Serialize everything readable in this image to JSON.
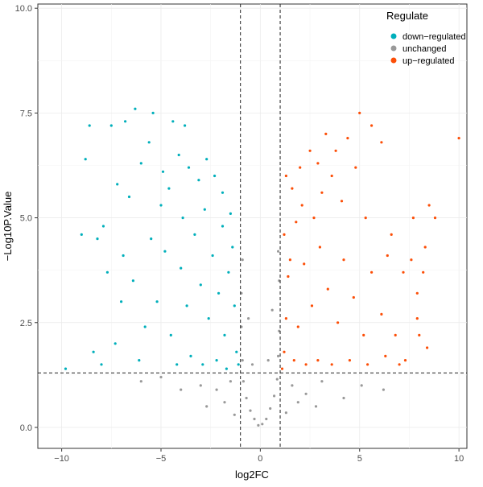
{
  "chart_data": {
    "type": "scatter",
    "xlabel": "log2FC",
    "ylabel": "−Log10P.Value",
    "xlim": [
      -11.2,
      10.4
    ],
    "ylim": [
      -0.5,
      10.1
    ],
    "x_ticks": [
      -10,
      -5,
      0,
      5,
      10
    ],
    "y_ticks": [
      0.0,
      2.5,
      5.0,
      7.5,
      10.0
    ],
    "x_tick_labels": [
      "−10",
      "−5",
      "0",
      "5",
      "10"
    ],
    "y_tick_labels": [
      "0.0",
      "2.5",
      "5.0",
      "7.5",
      "10.0"
    ],
    "grid": true,
    "fc_thresholds": [
      -1,
      1
    ],
    "p_threshold": 1.3,
    "legend": {
      "title": "Regulate",
      "position": "top-right",
      "entries": [
        {
          "label": "down−regulated",
          "color": "#00AFBB"
        },
        {
          "label": "unchanged",
          "color": "#999999"
        },
        {
          "label": "up−regulated",
          "color": "#FC4E07"
        }
      ]
    },
    "series": [
      {
        "name": "down−regulated",
        "color": "#00AFBB",
        "points": [
          [
            -8.6,
            7.2
          ],
          [
            -8.8,
            6.4
          ],
          [
            -9.0,
            4.6
          ],
          [
            -8.2,
            4.5
          ],
          [
            -7.9,
            4.8
          ],
          [
            -7.5,
            7.2
          ],
          [
            -6.8,
            7.3
          ],
          [
            -6.3,
            7.6
          ],
          [
            -5.4,
            7.5
          ],
          [
            -4.4,
            7.3
          ],
          [
            -3.8,
            7.2
          ],
          [
            -7.2,
            5.8
          ],
          [
            -6.6,
            5.5
          ],
          [
            -6.0,
            6.3
          ],
          [
            -5.6,
            6.8
          ],
          [
            -4.9,
            6.1
          ],
          [
            -4.6,
            5.7
          ],
          [
            -4.1,
            6.5
          ],
          [
            -3.6,
            6.2
          ],
          [
            -3.1,
            5.9
          ],
          [
            -2.7,
            6.4
          ],
          [
            -2.3,
            6.0
          ],
          [
            -1.9,
            5.6
          ],
          [
            -1.5,
            5.1
          ],
          [
            -6.4,
            3.5
          ],
          [
            -7.0,
            3.0
          ],
          [
            -5.5,
            4.5
          ],
          [
            -5.2,
            3.0
          ],
          [
            -4.8,
            4.2
          ],
          [
            -4.5,
            2.2
          ],
          [
            -4.0,
            3.8
          ],
          [
            -3.7,
            2.9
          ],
          [
            -3.3,
            4.6
          ],
          [
            -3.0,
            3.4
          ],
          [
            -2.6,
            2.6
          ],
          [
            -2.4,
            4.1
          ],
          [
            -2.1,
            3.2
          ],
          [
            -1.8,
            2.2
          ],
          [
            -1.6,
            3.7
          ],
          [
            -1.3,
            2.9
          ],
          [
            -1.2,
            1.8
          ],
          [
            -1.4,
            4.3
          ],
          [
            -8.0,
            1.5
          ],
          [
            -7.3,
            2.0
          ],
          [
            -6.1,
            1.6
          ],
          [
            -5.8,
            2.4
          ],
          [
            -4.2,
            1.5
          ],
          [
            -3.5,
            1.7
          ],
          [
            -2.9,
            1.5
          ],
          [
            -2.2,
            1.6
          ],
          [
            -1.7,
            1.4
          ],
          [
            -1.1,
            1.5
          ],
          [
            -1.9,
            4.8
          ],
          [
            -2.8,
            5.2
          ],
          [
            -3.9,
            5.0
          ],
          [
            -5.0,
            5.3
          ],
          [
            -6.9,
            4.1
          ],
          [
            -7.7,
            3.7
          ],
          [
            -9.8,
            1.4
          ],
          [
            -8.4,
            1.8
          ]
        ]
      },
      {
        "name": "unchanged",
        "color": "#999999",
        "points": [
          [
            -0.1,
            0.05
          ],
          [
            0.1,
            0.08
          ],
          [
            -0.3,
            0.2
          ],
          [
            0.3,
            0.2
          ],
          [
            -0.5,
            0.4
          ],
          [
            0.5,
            0.45
          ],
          [
            -0.7,
            0.7
          ],
          [
            0.7,
            0.75
          ],
          [
            -0.85,
            1.1
          ],
          [
            0.85,
            1.15
          ],
          [
            -0.9,
            1.6
          ],
          [
            0.9,
            1.7
          ],
          [
            -0.95,
            2.4
          ],
          [
            0.95,
            2.3
          ],
          [
            -0.95,
            3.2
          ],
          [
            0.95,
            3.5
          ],
          [
            -0.9,
            4.0
          ],
          [
            0.9,
            4.2
          ],
          [
            -1.5,
            1.1
          ],
          [
            1.6,
            1.0
          ],
          [
            -2.2,
            0.9
          ],
          [
            2.3,
            0.8
          ],
          [
            -3.0,
            1.0
          ],
          [
            3.1,
            1.1
          ],
          [
            -4.0,
            0.9
          ],
          [
            4.2,
            0.7
          ],
          [
            -5.0,
            1.2
          ],
          [
            5.1,
            1.0
          ],
          [
            -2.7,
            0.5
          ],
          [
            2.8,
            0.5
          ],
          [
            -1.8,
            0.6
          ],
          [
            1.9,
            0.6
          ],
          [
            -6.0,
            1.1
          ],
          [
            6.2,
            0.9
          ],
          [
            -1.3,
            0.3
          ],
          [
            1.3,
            0.35
          ],
          [
            -0.4,
            1.5
          ],
          [
            0.4,
            1.6
          ],
          [
            -0.6,
            2.6
          ],
          [
            0.6,
            2.8
          ]
        ]
      },
      {
        "name": "up−regulated",
        "color": "#FC4E07",
        "points": [
          [
            10.0,
            6.9
          ],
          [
            8.8,
            5.0
          ],
          [
            8.5,
            5.3
          ],
          [
            8.3,
            4.3
          ],
          [
            7.7,
            5.0
          ],
          [
            8.2,
            3.7
          ],
          [
            7.9,
            3.2
          ],
          [
            7.2,
            3.7
          ],
          [
            6.6,
            4.6
          ],
          [
            6.1,
            6.8
          ],
          [
            5.6,
            7.2
          ],
          [
            5.0,
            7.5
          ],
          [
            4.4,
            6.9
          ],
          [
            3.8,
            6.6
          ],
          [
            3.3,
            7.0
          ],
          [
            2.9,
            6.3
          ],
          [
            2.5,
            6.6
          ],
          [
            2.0,
            6.2
          ],
          [
            1.6,
            5.7
          ],
          [
            1.3,
            6.0
          ],
          [
            1.2,
            4.6
          ],
          [
            1.4,
            3.6
          ],
          [
            1.3,
            2.6
          ],
          [
            1.2,
            1.8
          ],
          [
            1.1,
            1.4
          ],
          [
            1.8,
            4.9
          ],
          [
            2.2,
            3.9
          ],
          [
            2.6,
            2.9
          ],
          [
            3.0,
            4.3
          ],
          [
            3.4,
            3.3
          ],
          [
            3.9,
            2.5
          ],
          [
            4.2,
            4.0
          ],
          [
            4.7,
            3.1
          ],
          [
            5.2,
            2.2
          ],
          [
            5.6,
            3.7
          ],
          [
            6.1,
            2.7
          ],
          [
            6.8,
            2.2
          ],
          [
            7.3,
            1.6
          ],
          [
            7.9,
            2.6
          ],
          [
            8.4,
            1.9
          ],
          [
            1.7,
            1.6
          ],
          [
            2.3,
            1.5
          ],
          [
            2.9,
            1.6
          ],
          [
            3.6,
            1.5
          ],
          [
            4.5,
            1.6
          ],
          [
            5.4,
            1.5
          ],
          [
            6.3,
            1.7
          ],
          [
            7.0,
            1.5
          ],
          [
            2.1,
            5.3
          ],
          [
            3.1,
            5.6
          ],
          [
            4.1,
            5.4
          ],
          [
            5.3,
            5.0
          ],
          [
            6.4,
            4.1
          ],
          [
            7.6,
            4.0
          ],
          [
            8.0,
            2.2
          ],
          [
            4.8,
            6.2
          ],
          [
            3.6,
            6.0
          ],
          [
            2.7,
            5.0
          ],
          [
            1.5,
            4.0
          ],
          [
            1.9,
            2.4
          ]
        ]
      }
    ]
  }
}
